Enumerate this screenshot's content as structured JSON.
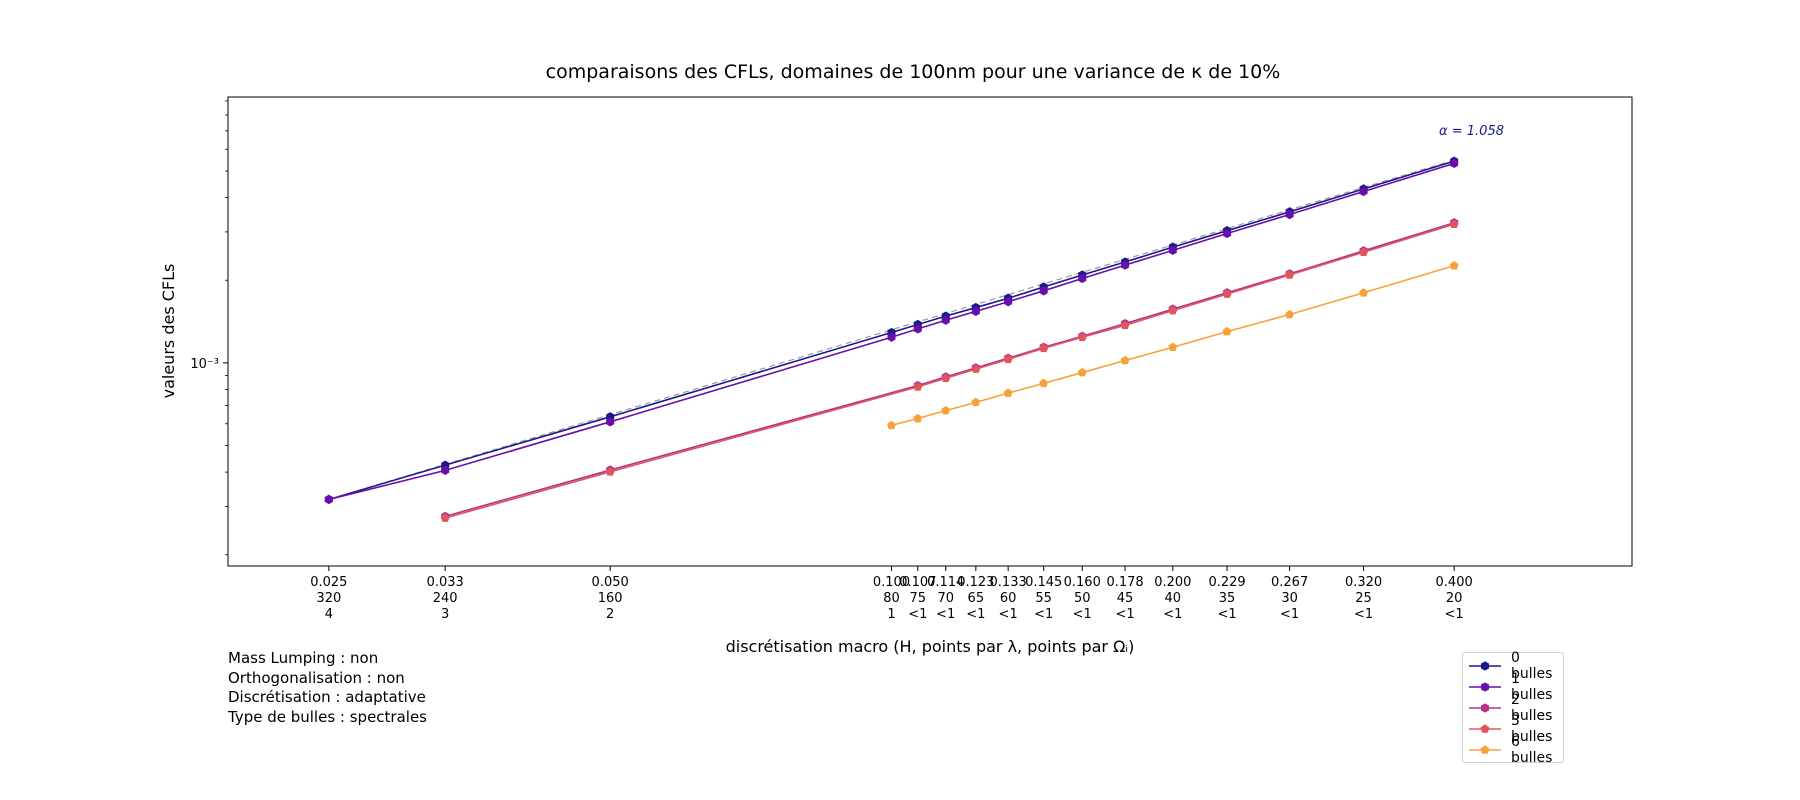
{
  "chart_data": {
    "type": "line",
    "title": "comparaisons des CFLs, domaines de 100nm pour une variance de κ de 10%",
    "xlabel": "discrétisation macro (H, points par λ, points par Ωᵢ)",
    "ylabel": "valeurs des CFLs",
    "xscale": "log",
    "yscale": "log",
    "xlim": [
      0.0195,
      0.62
    ],
    "ylim": [
      0.000182,
      0.0093
    ],
    "ytick_label": "10⁻³",
    "x_ticks": [
      {
        "h": "0.025",
        "pts_lambda": "320",
        "pts_omega": "4"
      },
      {
        "h": "0.033",
        "pts_lambda": "240",
        "pts_omega": "3"
      },
      {
        "h": "0.050",
        "pts_lambda": "160",
        "pts_omega": "2"
      },
      {
        "h": "0.100",
        "pts_lambda": "80",
        "pts_omega": "1"
      },
      {
        "h": "0.107",
        "pts_lambda": "75",
        "pts_omega": "<1"
      },
      {
        "h": "0.114",
        "pts_lambda": "70",
        "pts_omega": "<1"
      },
      {
        "h": "0.123",
        "pts_lambda": "65",
        "pts_omega": "<1"
      },
      {
        "h": "0.133",
        "pts_lambda": "60",
        "pts_omega": "<1"
      },
      {
        "h": "0.145",
        "pts_lambda": "55",
        "pts_omega": "<1"
      },
      {
        "h": "0.160",
        "pts_lambda": "50",
        "pts_omega": "<1"
      },
      {
        "h": "0.178",
        "pts_lambda": "45",
        "pts_omega": "<1"
      },
      {
        "h": "0.200",
        "pts_lambda": "40",
        "pts_omega": "<1"
      },
      {
        "h": "0.229",
        "pts_lambda": "35",
        "pts_omega": "<1"
      },
      {
        "h": "0.267",
        "pts_lambda": "30",
        "pts_omega": "<1"
      },
      {
        "h": "0.320",
        "pts_lambda": "25",
        "pts_omega": "<1"
      },
      {
        "h": "0.400",
        "pts_lambda": "20",
        "pts_omega": "<1"
      }
    ],
    "x_values": [
      0.025,
      0.0333,
      0.05,
      0.1,
      0.1067,
      0.1143,
      0.1231,
      0.1333,
      0.1455,
      0.16,
      0.1778,
      0.2,
      0.2286,
      0.2667,
      0.32,
      0.4
    ],
    "series": [
      {
        "name": "0 bulles",
        "color": "#1a1a8c",
        "marker": "hexagon",
        "values": [
          0.000318,
          0.000424,
          0.000636,
          0.00129,
          0.00138,
          0.00148,
          0.00159,
          0.00172,
          0.00189,
          0.00209,
          0.00233,
          0.00264,
          0.00303,
          0.00355,
          0.0043,
          0.00543
        ]
      },
      {
        "name": "1 bulles",
        "color": "#6a0dad",
        "marker": "hexagon",
        "values": [
          0.000318,
          0.000406,
          0.00061,
          0.00124,
          0.00133,
          0.00143,
          0.00154,
          0.00167,
          0.00183,
          0.00203,
          0.00227,
          0.00257,
          0.00296,
          0.00347,
          0.00421,
          0.00533
        ]
      },
      {
        "name": "2 bulles",
        "color": "#b5338a",
        "marker": "hexagon",
        "values": [
          null,
          0.000276,
          0.000407,
          null,
          0.000827,
          0.000889,
          0.000959,
          0.00104,
          0.00114,
          0.00125,
          0.00139,
          0.00157,
          0.0018,
          0.00211,
          0.00256,
          0.00324
        ]
      },
      {
        "name": "3 bulles",
        "color": "#e0565f",
        "marker": "pentagon",
        "values": [
          null,
          0.000272,
          0.000401,
          null,
          0.000818,
          0.000879,
          0.000949,
          0.00103,
          0.00113,
          0.00124,
          0.00137,
          0.00155,
          0.00178,
          0.00209,
          0.00253,
          0.0032
        ]
      },
      {
        "name": "6 bulles",
        "color": "#f7a13b",
        "marker": "pentagon",
        "values": [
          null,
          null,
          null,
          0.000592,
          0.000627,
          0.00067,
          0.000718,
          0.000776,
          0.000842,
          0.000922,
          0.00102,
          0.00114,
          0.0013,
          0.0015,
          0.0018,
          0.00226
        ]
      }
    ],
    "series_points_x_index": "aligned with x_values; null = no point",
    "fit_line": {
      "style": "dashed",
      "color": "#9a9a9a",
      "label": "α = 1.058",
      "label_color": "#1a1a8c"
    },
    "grid": false,
    "legend_position": "lower-right outside axes"
  },
  "notes": [
    "Mass Lumping : non",
    "Orthogonalisation : non",
    "Discrétisation : adaptative",
    "Type de bulles : spectrales"
  ]
}
